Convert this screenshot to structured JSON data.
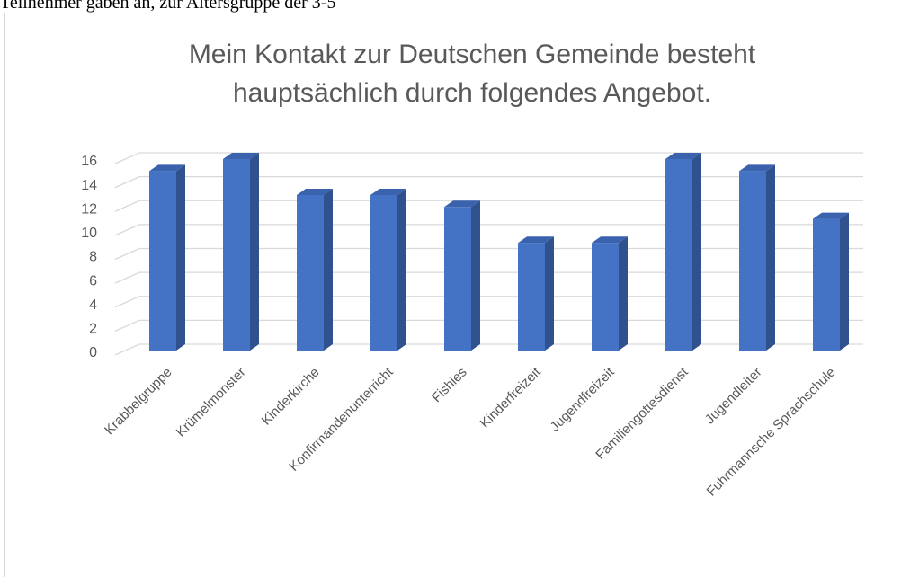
{
  "header_text": "Teilnehmer gaben an, zur Altersgruppe der 3-5",
  "chart_data": {
    "type": "bar3d",
    "title_lines": [
      "Mein Kontakt zur Deutschen Gemeinde besteht",
      "hauptsächlich durch folgendes Angebot."
    ],
    "categories": [
      "Krabbelgruppe",
      "Krümelmonster",
      "Kinderkirche",
      "Konfirmandenunterricht",
      "Fishies",
      "Kinderfreizeit",
      "Jugendfreizeit",
      "Familiengottesdienst",
      "Jugendleiter",
      "Fuhrmannsche Sprachschule"
    ],
    "values": [
      15,
      16,
      13,
      13,
      12,
      9,
      9,
      16,
      15,
      11
    ],
    "color": "#4472c4",
    "ylim": [
      0,
      16
    ],
    "yticks": [
      0,
      2,
      4,
      6,
      8,
      10,
      12,
      14,
      16
    ],
    "grid": true
  }
}
